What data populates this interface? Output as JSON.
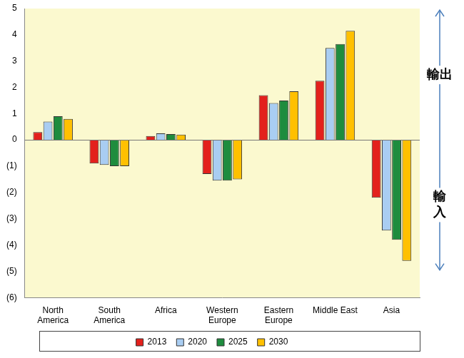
{
  "chart_data": {
    "type": "bar",
    "categories": [
      "North America",
      "South America",
      "Africa",
      "Western Europe",
      "Eastern Europe",
      "Middle East",
      "Asia"
    ],
    "series": [
      {
        "name": "2013",
        "color": "#e3211c",
        "values": [
          0.3,
          -0.9,
          0.15,
          -1.3,
          1.7,
          2.25,
          -2.2
        ]
      },
      {
        "name": "2020",
        "color": "#a9cdf2",
        "values": [
          0.7,
          -0.95,
          0.25,
          -1.55,
          1.4,
          3.5,
          -3.45
        ]
      },
      {
        "name": "2025",
        "color": "#1e8c3e",
        "values": [
          0.9,
          -1.0,
          0.22,
          -1.55,
          1.5,
          3.65,
          -3.8
        ]
      },
      {
        "name": "2030",
        "color": "#ffc000",
        "values": [
          0.8,
          -1.0,
          0.2,
          -1.5,
          1.85,
          4.15,
          -4.6
        ]
      }
    ],
    "ylim": [
      -6,
      5
    ],
    "yticks": [
      {
        "value": -6,
        "label": "(6)"
      },
      {
        "value": -5,
        "label": "(5)"
      },
      {
        "value": -4,
        "label": "(4)"
      },
      {
        "value": -3,
        "label": "(3)"
      },
      {
        "value": -2,
        "label": "(2)"
      },
      {
        "value": -1,
        "label": "(1)"
      },
      0,
      1,
      2,
      3,
      4,
      5
    ],
    "grid": false,
    "legend": "bottom",
    "annotations": [
      {
        "text": "輸出"
      },
      {
        "text": "輸入"
      }
    ]
  }
}
